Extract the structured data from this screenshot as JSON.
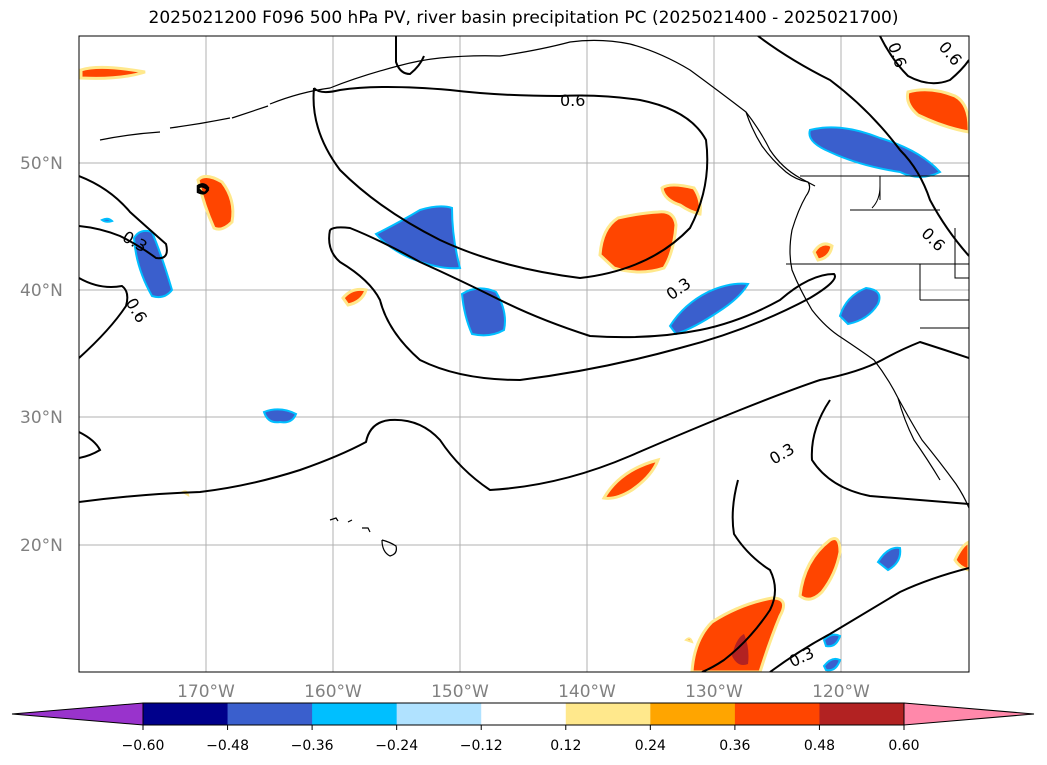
{
  "title": "2025021200 F096 500 hPa PV, river basin precipitation PC (2025021400 - 2025021700)",
  "map": {
    "lat_labels": [
      "50°N",
      "40°N",
      "30°N",
      "20°N"
    ],
    "lon_labels": [
      "170°W",
      "160°W",
      "150°W",
      "140°W",
      "130°W",
      "120°W"
    ],
    "contour_labels": [
      {
        "text": "0.6"
      },
      {
        "text": "0.6"
      },
      {
        "text": "0.6"
      },
      {
        "text": "0.3"
      },
      {
        "text": "0.6"
      },
      {
        "text": "0.6"
      },
      {
        "text": "0.3"
      },
      {
        "text": "0.3"
      },
      {
        "text": "0.3"
      }
    ]
  },
  "colorbar": {
    "ticks": [
      "−0.60",
      "−0.48",
      "−0.36",
      "−0.24",
      "−0.12",
      "0.12",
      "0.24",
      "0.36",
      "0.48",
      "0.60"
    ],
    "colors": [
      "#9933cc",
      "#00008b",
      "#3a5fcd",
      "#00bfff",
      "#b0e2ff",
      "#ffffff",
      "#ffe88c",
      "#ffa500",
      "#ff4500",
      "#b22222",
      "#ff88aa"
    ]
  },
  "colors": {
    "neg_blue": "#3a5fcd",
    "neg_cyan": "#00bfff",
    "pos_orange": "#ff4500",
    "pos_yellow": "#ffe88c",
    "pos_dark": "#b22222",
    "grid": "#b0b0b0",
    "axis_label": "#808080"
  }
}
